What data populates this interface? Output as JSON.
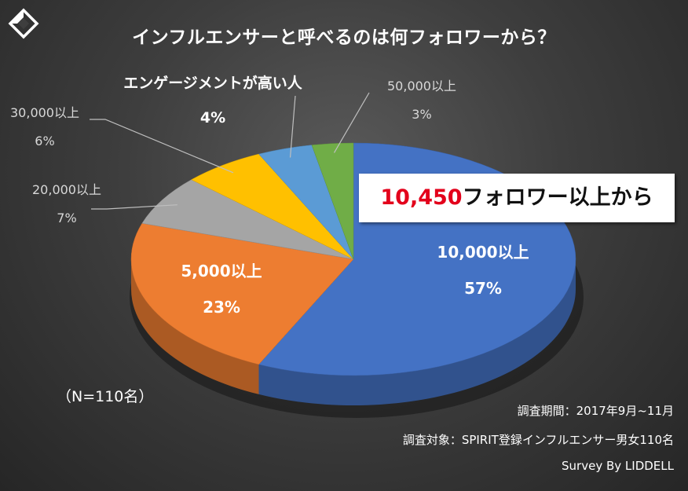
{
  "title": "インフルエンサーと呼べるのは何フォロワーから？",
  "callout": {
    "number": "10,450",
    "text": "フォロワー以上から"
  },
  "sample_size": "（N=110名）",
  "footer": {
    "period": "調査期間：2017年9月~11月",
    "target": "調査対象：SPIRIT登録インフルエンサー男女110名",
    "credit": "Survey By LIDDELL"
  },
  "chart_data": {
    "type": "pie",
    "title": "インフルエンサーと呼べるのは何フォロワーから？",
    "style": "3d",
    "slices": [
      {
        "label": "10,000以上",
        "value": 57,
        "pct_label": "57%",
        "color": "#4472c4"
      },
      {
        "label": "5,000以上",
        "value": 23,
        "pct_label": "23%",
        "color": "#ed7d31"
      },
      {
        "label": "20,000以上",
        "value": 7,
        "pct_label": "7%",
        "color": "#a5a5a5"
      },
      {
        "label": "30,000以上",
        "value": 6,
        "pct_label": "6%",
        "color": "#ffc000"
      },
      {
        "label": "エンゲージメントが高い人",
        "value": 4,
        "pct_label": "4%",
        "color": "#5b9bd5"
      },
      {
        "label": "50,000以上",
        "value": 3,
        "pct_label": "3%",
        "color": "#70ad47"
      }
    ]
  }
}
